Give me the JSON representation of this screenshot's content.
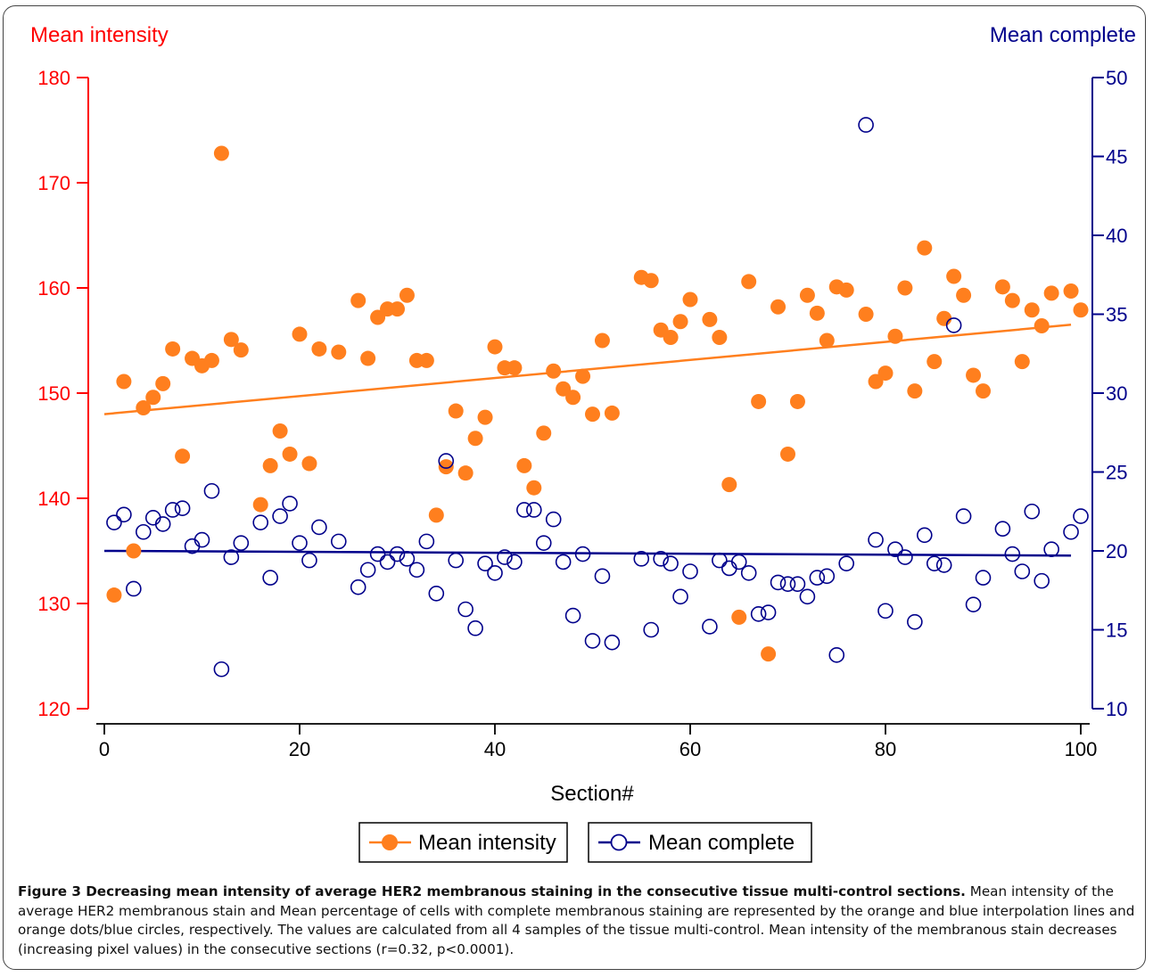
{
  "chart_data": {
    "type": "scatter",
    "xlabel": "Section#",
    "x_ticks": [
      0,
      20,
      40,
      60,
      80,
      100
    ],
    "xlim": [
      0,
      100
    ],
    "left_axis": {
      "label": "Mean intensity",
      "color": "#ff0000",
      "ylim": [
        120,
        180
      ],
      "ticks": [
        120,
        130,
        140,
        150,
        160,
        170,
        180
      ]
    },
    "right_axis": {
      "label": "Mean complete",
      "color": "#00008b",
      "ylim": [
        10,
        50
      ],
      "ticks": [
        10,
        15,
        20,
        25,
        30,
        35,
        40,
        45,
        50
      ]
    },
    "grid": false,
    "legend_position": "bottom-center",
    "series": [
      {
        "name": "Mean intensity",
        "axis": "left",
        "marker": "filled-circle",
        "color": "#ff7f1e",
        "trend": {
          "x": [
            0,
            99
          ],
          "y": [
            148,
            156.5
          ]
        },
        "points": [
          [
            1,
            130.8
          ],
          [
            2,
            151.1
          ],
          [
            3,
            135
          ],
          [
            4,
            148.6
          ],
          [
            5,
            149.6
          ],
          [
            6,
            150.9
          ],
          [
            7,
            154.2
          ],
          [
            8,
            144
          ],
          [
            9,
            153.3
          ],
          [
            10,
            152.6
          ],
          [
            11,
            153.1
          ],
          [
            12,
            172.8
          ],
          [
            13,
            155.1
          ],
          [
            14,
            154.1
          ],
          [
            16,
            139.4
          ],
          [
            17,
            143.1
          ],
          [
            18,
            146.4
          ],
          [
            19,
            144.2
          ],
          [
            20,
            155.6
          ],
          [
            21,
            143.3
          ],
          [
            22,
            154.2
          ],
          [
            24,
            153.9
          ],
          [
            26,
            158.8
          ],
          [
            27,
            153.3
          ],
          [
            28,
            157.2
          ],
          [
            29,
            158
          ],
          [
            30,
            158
          ],
          [
            31,
            159.3
          ],
          [
            32,
            153.1
          ],
          [
            33,
            153.1
          ],
          [
            34,
            138.4
          ],
          [
            35,
            143
          ],
          [
            36,
            148.3
          ],
          [
            37,
            142.4
          ],
          [
            38,
            145.7
          ],
          [
            39,
            147.7
          ],
          [
            40,
            154.4
          ],
          [
            41,
            152.4
          ],
          [
            42,
            152.4
          ],
          [
            43,
            143.1
          ],
          [
            44,
            141
          ],
          [
            45,
            146.2
          ],
          [
            46,
            152.1
          ],
          [
            47,
            150.4
          ],
          [
            48,
            149.6
          ],
          [
            49,
            151.6
          ],
          [
            50,
            148
          ],
          [
            51,
            155
          ],
          [
            52,
            148.1
          ],
          [
            55,
            161
          ],
          [
            56,
            160.7
          ],
          [
            57,
            156
          ],
          [
            58,
            155.3
          ],
          [
            59,
            156.8
          ],
          [
            60,
            158.9
          ],
          [
            62,
            157
          ],
          [
            63,
            155.3
          ],
          [
            64,
            141.3
          ],
          [
            65,
            128.7
          ],
          [
            66,
            160.6
          ],
          [
            67,
            149.2
          ],
          [
            68,
            125.2
          ],
          [
            69,
            158.2
          ],
          [
            70,
            144.2
          ],
          [
            71,
            149.2
          ],
          [
            72,
            159.3
          ],
          [
            73,
            157.6
          ],
          [
            74,
            155
          ],
          [
            75,
            160.1
          ],
          [
            76,
            159.8
          ],
          [
            78,
            157.5
          ],
          [
            79,
            151.1
          ],
          [
            80,
            151.9
          ],
          [
            81,
            155.4
          ],
          [
            82,
            160
          ],
          [
            83,
            150.2
          ],
          [
            84,
            163.8
          ],
          [
            85,
            153
          ],
          [
            86,
            157.1
          ],
          [
            87,
            161.1
          ],
          [
            88,
            159.3
          ],
          [
            89,
            151.7
          ],
          [
            90,
            150.2
          ],
          [
            92,
            160.1
          ],
          [
            93,
            158.8
          ],
          [
            94,
            153
          ],
          [
            95,
            157.9
          ],
          [
            96,
            156.4
          ],
          [
            97,
            159.5
          ],
          [
            99,
            159.7
          ],
          [
            100,
            157.9
          ]
        ]
      },
      {
        "name": "Mean complete",
        "axis": "right",
        "marker": "open-circle",
        "color": "#00008b",
        "trend": {
          "x": [
            0,
            99
          ],
          "y": [
            20,
            19.7
          ]
        },
        "points": [
          [
            1,
            21.8
          ],
          [
            2,
            22.3
          ],
          [
            3,
            17.6
          ],
          [
            4,
            21.2
          ],
          [
            5,
            22.1
          ],
          [
            6,
            21.7
          ],
          [
            7,
            22.6
          ],
          [
            8,
            22.7
          ],
          [
            9,
            20.3
          ],
          [
            10,
            20.7
          ],
          [
            11,
            23.8
          ],
          [
            12,
            12.5
          ],
          [
            13,
            19.6
          ],
          [
            14,
            20.5
          ],
          [
            16,
            21.8
          ],
          [
            17,
            18.3
          ],
          [
            18,
            22.2
          ],
          [
            19,
            23
          ],
          [
            20,
            20.5
          ],
          [
            21,
            19.4
          ],
          [
            22,
            21.5
          ],
          [
            24,
            20.6
          ],
          [
            26,
            17.7
          ],
          [
            27,
            18.8
          ],
          [
            28,
            19.8
          ],
          [
            29,
            19.3
          ],
          [
            30,
            19.8
          ],
          [
            31,
            19.5
          ],
          [
            32,
            18.8
          ],
          [
            33,
            20.6
          ],
          [
            34,
            17.3
          ],
          [
            35,
            25.7
          ],
          [
            36,
            19.4
          ],
          [
            37,
            16.3
          ],
          [
            38,
            15.1
          ],
          [
            39,
            19.2
          ],
          [
            40,
            18.6
          ],
          [
            41,
            19.6
          ],
          [
            42,
            19.3
          ],
          [
            43,
            22.6
          ],
          [
            44,
            22.6
          ],
          [
            45,
            20.5
          ],
          [
            46,
            22
          ],
          [
            47,
            19.3
          ],
          [
            48,
            15.9
          ],
          [
            49,
            19.8
          ],
          [
            50,
            14.3
          ],
          [
            51,
            18.4
          ],
          [
            52,
            14.2
          ],
          [
            55,
            19.5
          ],
          [
            56,
            15
          ],
          [
            57,
            19.5
          ],
          [
            58,
            19.2
          ],
          [
            59,
            17.1
          ],
          [
            60,
            18.7
          ],
          [
            62,
            15.2
          ],
          [
            63,
            19.4
          ],
          [
            64,
            18.9
          ],
          [
            65,
            19.3
          ],
          [
            66,
            18.6
          ],
          [
            67,
            16
          ],
          [
            68,
            16.1
          ],
          [
            69,
            18
          ],
          [
            70,
            17.9
          ],
          [
            71,
            17.9
          ],
          [
            72,
            17.1
          ],
          [
            73,
            18.3
          ],
          [
            74,
            18.4
          ],
          [
            75,
            13.4
          ],
          [
            76,
            19.2
          ],
          [
            78,
            47
          ],
          [
            79,
            20.7
          ],
          [
            80,
            16.2
          ],
          [
            81,
            20.1
          ],
          [
            82,
            19.6
          ],
          [
            83,
            15.5
          ],
          [
            84,
            21
          ],
          [
            85,
            19.2
          ],
          [
            86,
            19.1
          ],
          [
            87,
            34.3
          ],
          [
            88,
            22.2
          ],
          [
            89,
            16.6
          ],
          [
            90,
            18.3
          ],
          [
            92,
            21.4
          ],
          [
            93,
            19.8
          ],
          [
            94,
            18.7
          ],
          [
            95,
            22.5
          ],
          [
            96,
            18.1
          ],
          [
            97,
            20.1
          ],
          [
            99,
            21.2
          ],
          [
            100,
            22.2
          ]
        ]
      }
    ]
  },
  "caption": {
    "bold": "Figure 3 Decreasing mean intensity of average HER2 membranous staining in the consecutive tissue multi-control sections.",
    "text": " Mean intensity of the average HER2 membranous stain and Mean percentage of cells with complete membranous staining are represented by the orange and blue interpolation lines and orange dots/blue circles, respectively. The values are calculated from all 4 samples of the tissue multi-control. Mean intensity of the membranous stain decreases (increasing pixel values) in the consecutive sections (r=0.32, p<0.0001)."
  }
}
